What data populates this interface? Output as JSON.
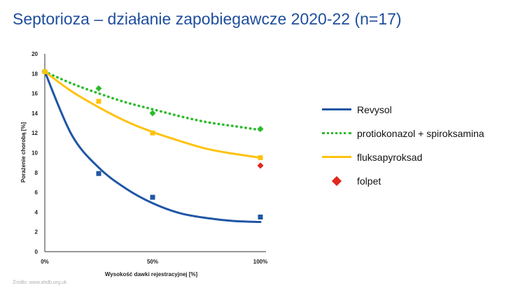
{
  "slide": {
    "title": "Septorioza – działanie zapobiegawcze 2020-22 (n=17)",
    "source": "Źródło:  www.ahdb.org.uk"
  },
  "chart_data": {
    "type": "scatter",
    "xlabel": "Wysokość dawki rejestracyjnej [%]",
    "ylabel": "Porażenie chorobą [%]",
    "x_ticks": [
      "0%",
      "50%",
      "100%"
    ],
    "y_ticks": [
      "0",
      "2",
      "4",
      "6",
      "8",
      "10",
      "12",
      "14",
      "16",
      "18",
      "20"
    ],
    "xlim": [
      0,
      100
    ],
    "ylim": [
      0,
      20
    ],
    "grid": false,
    "legend_position": "right",
    "series": [
      {
        "name": "Revysol",
        "color": "#1f56a5",
        "line_style": "solid",
        "marker": "square",
        "points": [
          {
            "x": 0,
            "y": 18.2
          },
          {
            "x": 25,
            "y": 7.9
          },
          {
            "x": 50,
            "y": 5.5
          },
          {
            "x": 100,
            "y": 3.5
          }
        ],
        "trend": [
          {
            "x": 0,
            "y": 18.2
          },
          {
            "x": 12.5,
            "y": 11.8
          },
          {
            "x": 25,
            "y": 8.5
          },
          {
            "x": 37.5,
            "y": 6.4
          },
          {
            "x": 50,
            "y": 4.9
          },
          {
            "x": 62.5,
            "y": 3.9
          },
          {
            "x": 75,
            "y": 3.4
          },
          {
            "x": 87.5,
            "y": 3.1
          },
          {
            "x": 100,
            "y": 3.0
          }
        ]
      },
      {
        "name": "protiokonazol + spiroksamina",
        "color": "#2bbb2b",
        "line_style": "dotted",
        "marker": "diamond",
        "points": [
          {
            "x": 0,
            "y": 18.2
          },
          {
            "x": 25,
            "y": 16.5
          },
          {
            "x": 50,
            "y": 14.0
          },
          {
            "x": 100,
            "y": 12.4
          }
        ],
        "trend": [
          {
            "x": 0,
            "y": 18.2
          },
          {
            "x": 12.5,
            "y": 17.0
          },
          {
            "x": 25,
            "y": 16.0
          },
          {
            "x": 37.5,
            "y": 15.1
          },
          {
            "x": 50,
            "y": 14.4
          },
          {
            "x": 62.5,
            "y": 13.7
          },
          {
            "x": 75,
            "y": 13.1
          },
          {
            "x": 87.5,
            "y": 12.7
          },
          {
            "x": 100,
            "y": 12.3
          }
        ]
      },
      {
        "name": "fluksapyroksad",
        "color": "#ffc20e",
        "line_style": "solid",
        "marker": "square",
        "points": [
          {
            "x": 0,
            "y": 18.2
          },
          {
            "x": 25,
            "y": 15.2
          },
          {
            "x": 50,
            "y": 12.0
          },
          {
            "x": 100,
            "y": 9.5
          }
        ],
        "trend": [
          {
            "x": 0,
            "y": 18.2
          },
          {
            "x": 12.5,
            "y": 16.2
          },
          {
            "x": 25,
            "y": 14.6
          },
          {
            "x": 37.5,
            "y": 13.2
          },
          {
            "x": 50,
            "y": 12.1
          },
          {
            "x": 62.5,
            "y": 11.2
          },
          {
            "x": 75,
            "y": 10.4
          },
          {
            "x": 87.5,
            "y": 9.9
          },
          {
            "x": 100,
            "y": 9.5
          }
        ]
      },
      {
        "name": "folpet",
        "color": "#e0281e",
        "line_style": "none",
        "marker": "diamond",
        "points": [
          {
            "x": 100,
            "y": 8.7
          }
        ],
        "trend": []
      }
    ]
  }
}
